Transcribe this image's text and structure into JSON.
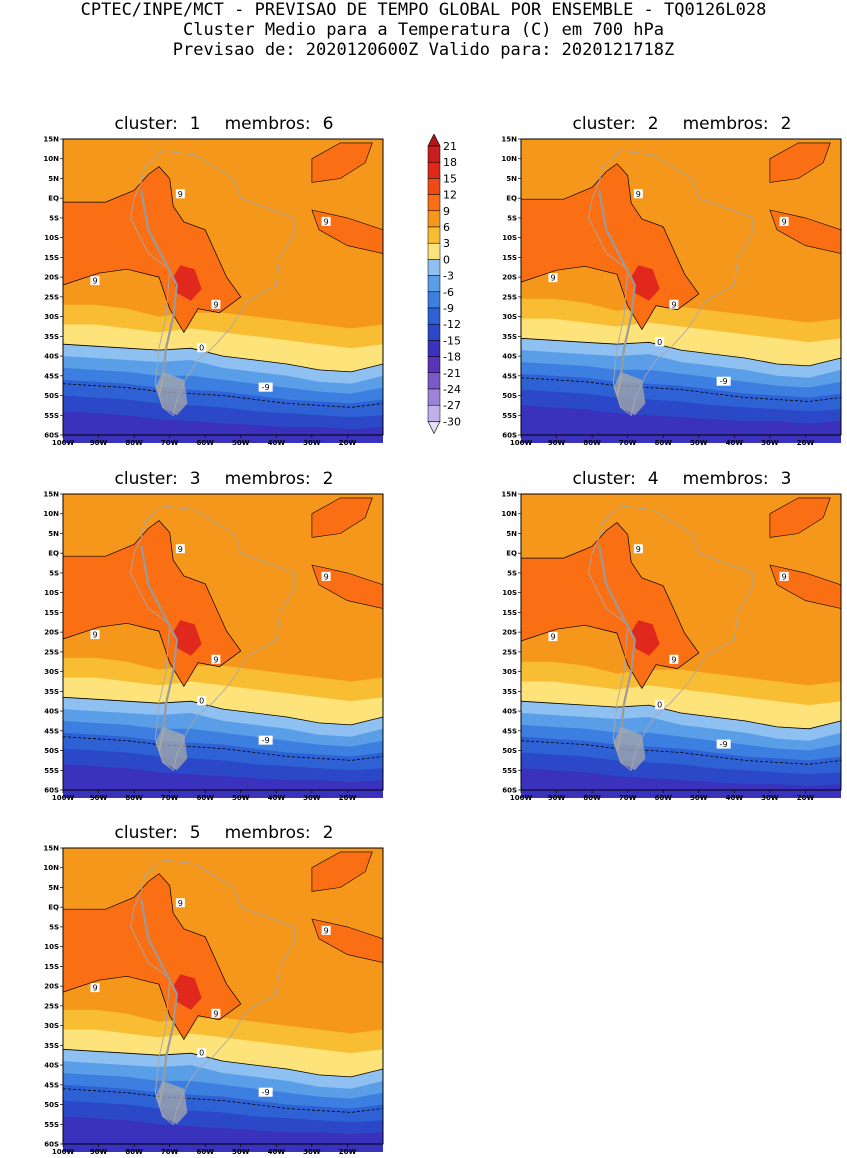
{
  "header": {
    "line1": "CPTEC/INPE/MCT - PREVISAO DE TEMPO GLOBAL POR ENSEMBLE - TQ0126L028",
    "line2": "Cluster Medio para a Temperatura (C) em 700 hPa",
    "line3": "Previsao de: 2020120600Z   Valido para: 2020121718Z"
  },
  "title_words": {
    "cluster": "cluster:",
    "membros": "membros:"
  },
  "panels": [
    {
      "cluster": "1",
      "membros": "6",
      "variant": 0,
      "left": 0
    },
    {
      "cluster": "2",
      "membros": "2",
      "variant": 1
    },
    {
      "cluster": "3",
      "membros": "2",
      "variant": 2
    },
    {
      "cluster": "4",
      "membros": "3",
      "variant": 3
    },
    {
      "cluster": "5",
      "membros": "2",
      "variant": 4
    }
  ],
  "lat_labels": [
    "15N",
    "10N",
    "5N",
    "EQ",
    "5S",
    "10S",
    "15S",
    "20S",
    "25S",
    "30S",
    "35S",
    "40S",
    "45S",
    "50S",
    "55S",
    "60S"
  ],
  "lon_labels": [
    "100W",
    "90W",
    "80W",
    "70W",
    "60W",
    "50W",
    "40W",
    "30W",
    "20W"
  ],
  "contour_labels": {
    "warm": "9",
    "zero": "0",
    "cold": "-9"
  },
  "colorbar": {
    "ticks": [
      "21",
      "18",
      "15",
      "12",
      "9",
      "6",
      "3",
      "0",
      "-3",
      "-6",
      "-9",
      "-12",
      "-15",
      "-18",
      "-21",
      "-24",
      "-27",
      "-30"
    ],
    "colors": [
      "#b01818",
      "#c81e1e",
      "#e0281c",
      "#f04a14",
      "#fa6e14",
      "#f5971a",
      "#f9bd33",
      "#fde37a",
      "#8ec0f2",
      "#5a9ee8",
      "#3c7fe0",
      "#2e62d4",
      "#2a48c8",
      "#3a32bc",
      "#5a34b8",
      "#7a5ac8",
      "#9c84d8",
      "#c0b0e8",
      "#e6e0f6"
    ]
  }
}
